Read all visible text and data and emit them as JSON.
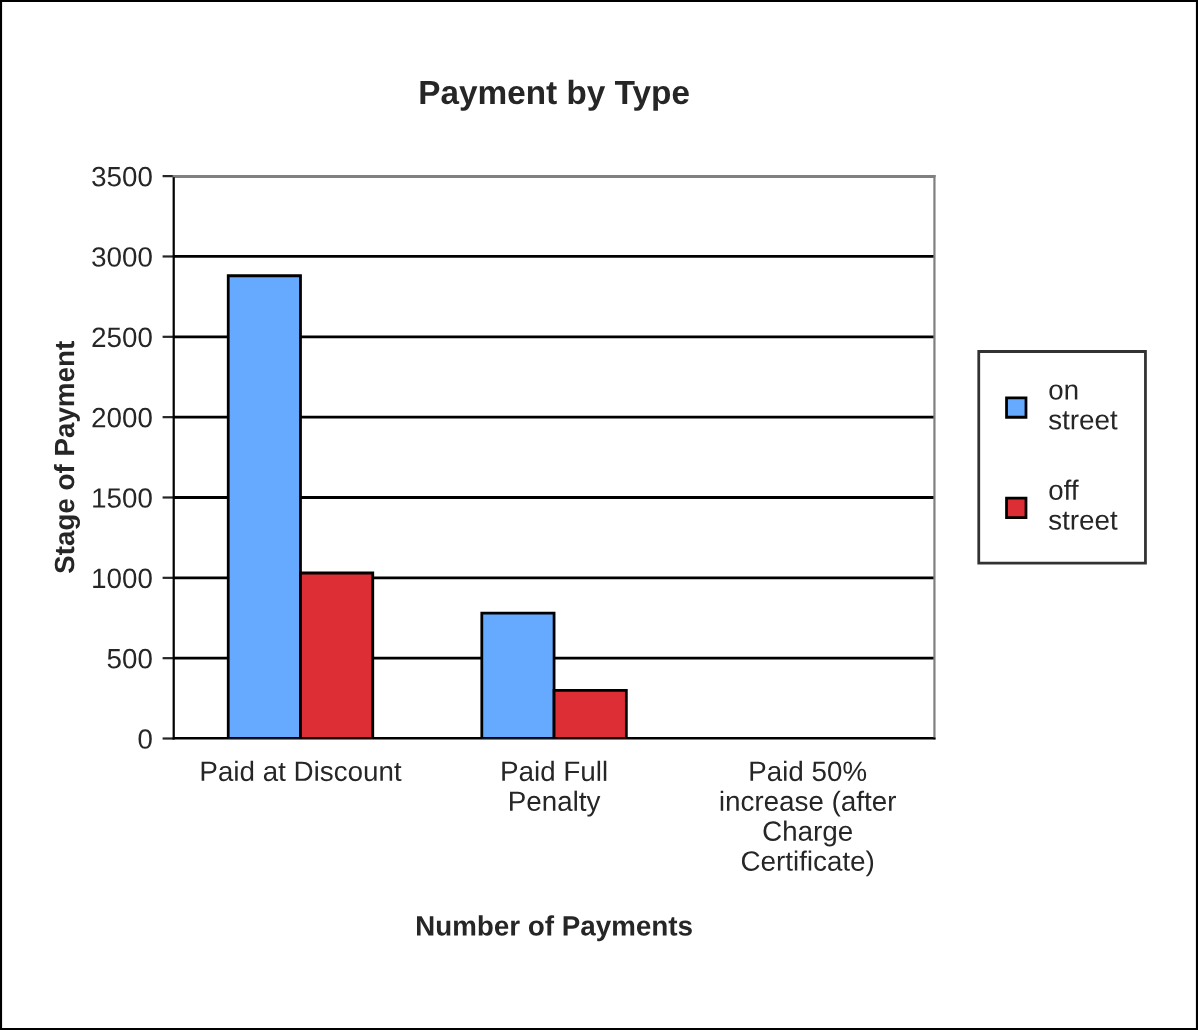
{
  "chart_data": {
    "type": "bar",
    "title": "Payment by Type",
    "xlabel": "Number of Payments",
    "ylabel": "Stage of Payment",
    "categories": [
      "Paid at Discount",
      "Paid Full\nPenalty",
      "Paid 50%\nincrease (after\nCharge\nCertificate)"
    ],
    "series": [
      {
        "name": "on\nstreet",
        "color": "#66aaff",
        "values": [
          2880,
          780,
          null
        ]
      },
      {
        "name": "off\nstreet",
        "color": "#dd2d35",
        "values": [
          1030,
          300,
          null
        ]
      }
    ],
    "ylim": [
      0,
      3500
    ],
    "yticks": [
      0,
      500,
      1000,
      1500,
      2000,
      2500,
      3000,
      3500
    ],
    "grid": "y",
    "legend": "right"
  }
}
